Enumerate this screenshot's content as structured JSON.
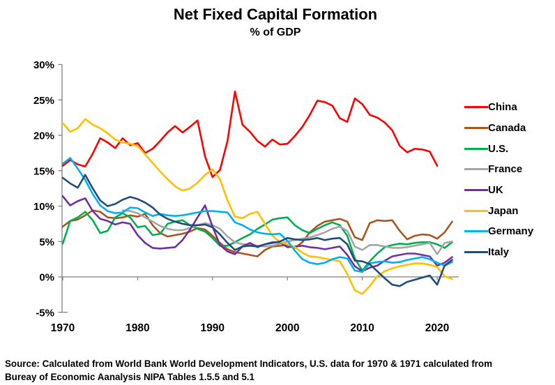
{
  "title": "Net Fixed Capital Formation",
  "subtitle": "% of GDP",
  "source": {
    "line1": "Source:  Calculated from World Bank World Development Indicators, U.S. data for 1970 & 1971 calculated from",
    "line2": "Bureay of Economic Aanalysis NIPA Tables 1.5.5 and 5.1"
  },
  "chart_data": {
    "type": "line",
    "title": "Net Fixed Capital Formation",
    "subtitle": "% of GDP",
    "xlabel": "",
    "ylabel": "% of GDP",
    "x_range": [
      1970,
      2022
    ],
    "ylim": [
      -5,
      30
    ],
    "x_ticks": [
      1970,
      1980,
      1990,
      2000,
      2010,
      2020
    ],
    "y_ticks": [
      30,
      25,
      20,
      15,
      10,
      5,
      0,
      -5
    ],
    "y_tick_suffix": "%",
    "grid": "zero-line-only",
    "legend_position": "right",
    "axis_color": "#7F7F7F",
    "series": [
      {
        "name": "China",
        "color": "#FF0000",
        "start_year": 1970,
        "values": [
          15.7,
          16.5,
          15.9,
          15.6,
          17.4,
          19.6,
          19.0,
          18.2,
          19.6,
          18.6,
          18.9,
          17.5,
          18.1,
          19.2,
          20.4,
          21.3,
          20.4,
          21.2,
          22.1,
          17.0,
          14.1,
          15.1,
          19.2,
          26.2,
          21.5,
          20.5,
          19.2,
          18.4,
          19.4,
          18.7,
          18.8,
          19.9,
          21.2,
          22.9,
          24.9,
          24.7,
          24.2,
          22.4,
          21.9,
          25.2,
          24.4,
          22.9,
          22.5,
          21.8,
          20.7,
          18.5,
          17.6,
          18.1,
          18.0,
          17.7,
          15.7
        ]
      },
      {
        "name": "Canada",
        "color": "#A9551E",
        "start_year": 1970,
        "values": [
          7.1,
          7.9,
          8.1,
          8.7,
          9.4,
          9.2,
          8.4,
          8.3,
          8.4,
          8.7,
          8.5,
          8.9,
          7.3,
          6.2,
          5.7,
          5.9,
          6.1,
          6.4,
          6.9,
          6.7,
          5.8,
          4.8,
          3.9,
          3.5,
          3.3,
          3.1,
          2.9,
          3.8,
          4.3,
          4.4,
          4.5,
          4.1,
          4.9,
          6.3,
          7.2,
          7.8,
          8.0,
          8.2,
          7.8,
          5.6,
          5.2,
          7.6,
          8.0,
          7.9,
          8.0,
          6.5,
          5.3,
          5.8,
          6.0,
          5.9,
          5.4,
          6.3,
          7.8
        ]
      },
      {
        "name": "U.S.",
        "color": "#00B050",
        "start_year": 1970,
        "values": [
          4.7,
          7.9,
          8.4,
          9.2,
          8.0,
          6.2,
          6.5,
          8.4,
          9.0,
          8.4,
          7.0,
          7.2,
          5.9,
          6.1,
          7.5,
          7.8,
          8.0,
          7.3,
          6.8,
          6.4,
          5.5,
          4.4,
          4.4,
          4.9,
          5.5,
          6.0,
          6.8,
          7.4,
          8.1,
          8.3,
          8.4,
          7.3,
          6.6,
          6.2,
          6.8,
          7.3,
          7.7,
          7.3,
          5.8,
          2.6,
          0.9,
          2.2,
          3.3,
          4.2,
          4.5,
          4.7,
          4.6,
          4.8,
          4.9,
          4.9,
          4.6,
          4.1,
          4.9
        ]
      },
      {
        "name": "France",
        "color": "#A5A5A5",
        "start_year": 1978,
        "values": [
          9.4,
          9.3,
          9.0,
          8.4,
          7.8,
          7.2,
          6.8,
          6.6,
          6.6,
          6.9,
          7.3,
          7.6,
          7.3,
          6.8,
          5.7,
          4.9,
          4.6,
          4.6,
          4.4,
          4.3,
          4.4,
          4.7,
          5.0,
          5.2,
          5.4,
          5.6,
          5.9,
          6.3,
          6.8,
          7.1,
          6.5,
          4.3,
          3.8,
          4.5,
          4.5,
          4.3,
          4.1,
          4.1,
          4.2,
          4.4,
          4.6,
          4.8,
          3.2,
          4.8,
          5.0
        ]
      },
      {
        "name": "UK",
        "color": "#7030A0",
        "start_year": 1970,
        "values": [
          11.4,
          10.1,
          10.7,
          11.1,
          9.3,
          8.2,
          7.9,
          7.4,
          7.7,
          7.5,
          5.9,
          4.8,
          4.1,
          4.0,
          4.1,
          4.2,
          5.2,
          6.7,
          8.4,
          10.1,
          7.1,
          4.5,
          3.6,
          3.2,
          4.3,
          4.8,
          4.2,
          4.6,
          4.9,
          4.9,
          4.2,
          4.3,
          4.4,
          4.2,
          4.1,
          3.9,
          4.1,
          4.3,
          3.1,
          1.5,
          0.8,
          1.3,
          1.6,
          2.3,
          2.9,
          3.1,
          3.3,
          3.3,
          3.1,
          2.9,
          1.6,
          2.0,
          2.8
        ]
      },
      {
        "name": "Japan",
        "color": "#FFC000",
        "start_year": 1970,
        "values": [
          21.7,
          20.5,
          21.0,
          22.3,
          21.5,
          21.0,
          20.3,
          19.4,
          19.0,
          18.8,
          18.5,
          17.3,
          16.1,
          14.9,
          13.8,
          12.8,
          12.2,
          12.5,
          13.3,
          14.4,
          15.2,
          13.8,
          10.8,
          8.5,
          8.3,
          8.9,
          9.2,
          7.5,
          5.8,
          4.9,
          4.6,
          4.2,
          3.4,
          2.9,
          2.8,
          2.6,
          2.4,
          2.2,
          0.4,
          -1.9,
          -2.4,
          -1.3,
          0.1,
          0.8,
          1.2,
          1.5,
          1.7,
          1.9,
          1.9,
          1.7,
          1.4,
          0.1,
          -0.3
        ]
      },
      {
        "name": "Germany",
        "color": "#00B0F0",
        "start_year": 1970,
        "values": [
          16.0,
          16.8,
          15.3,
          13.7,
          11.7,
          10.1,
          9.3,
          9.0,
          9.1,
          9.8,
          9.7,
          9.1,
          8.6,
          8.9,
          8.7,
          8.6,
          8.7,
          8.9,
          9.1,
          9.3,
          9.3,
          9.2,
          9.1,
          7.7,
          7.3,
          6.7,
          6.3,
          6.1,
          6.0,
          6.1,
          5.1,
          3.7,
          2.5,
          2.0,
          1.8,
          2.0,
          2.5,
          2.8,
          2.6,
          0.9,
          0.7,
          1.9,
          2.1,
          2.2,
          2.0,
          2.1,
          2.4,
          2.6,
          2.8,
          2.5,
          2.0,
          1.6,
          2.1
        ]
      },
      {
        "name": "Italy",
        "color": "#1F4E79",
        "start_year": 1970,
        "values": [
          14.0,
          13.2,
          12.6,
          14.4,
          12.5,
          10.8,
          10.0,
          10.3,
          10.9,
          11.3,
          11.0,
          10.5,
          9.8,
          8.8,
          8.2,
          7.8,
          7.5,
          7.3,
          7.3,
          7.4,
          7.0,
          6.0,
          4.8,
          3.8,
          4.3,
          4.4,
          4.3,
          4.6,
          4.8,
          5.0,
          5.5,
          5.3,
          5.2,
          5.3,
          5.5,
          5.2,
          5.4,
          5.5,
          4.6,
          2.3,
          2.2,
          1.8,
          0.8,
          -0.2,
          -1.1,
          -1.3,
          -0.7,
          -0.4,
          -0.1,
          0.2,
          -1.1,
          1.6,
          2.4
        ]
      }
    ]
  }
}
